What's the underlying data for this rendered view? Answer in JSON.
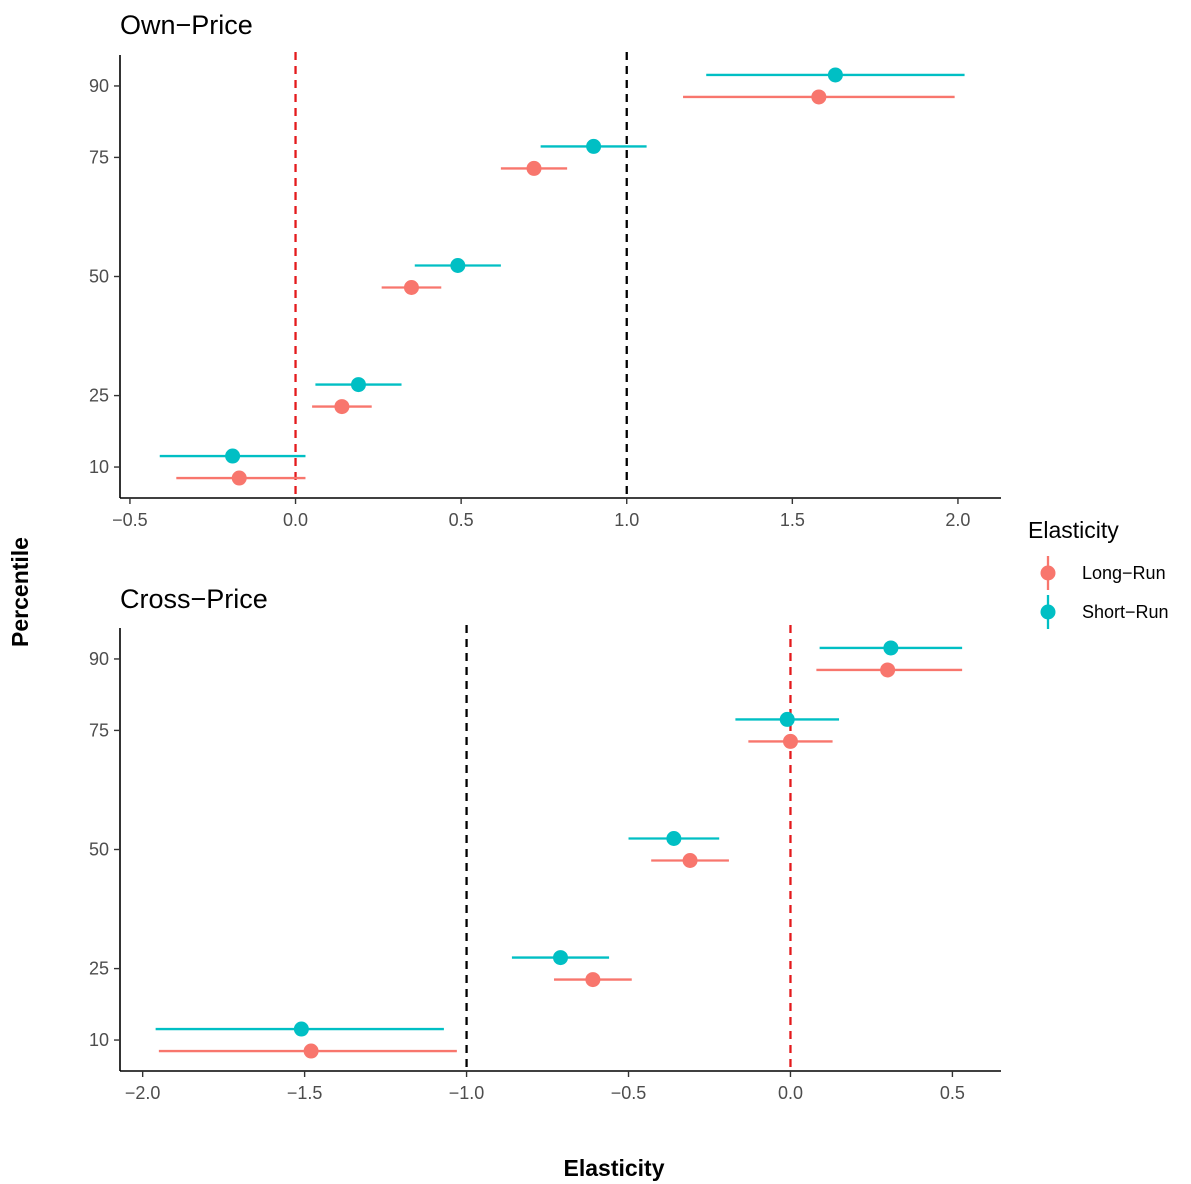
{
  "chart_data": {
    "type": "scatter",
    "xlabel": "Elasticity",
    "ylabel": "Percentile",
    "legend": {
      "title": "Elasticity",
      "position": "right",
      "entries": [
        {
          "name": "Long−Run",
          "color": "#F8766D"
        },
        {
          "name": "Short−Run",
          "color": "#00BFC4"
        }
      ]
    },
    "grid": false,
    "panels": [
      {
        "title": "Own−Price",
        "xlim": [
          -0.53,
          2.13
        ],
        "ylim": [
          3.5,
          96.5
        ],
        "x_ticks": [
          -0.5,
          0.0,
          0.5,
          1.0,
          1.5,
          2.0
        ],
        "x_tick_labels": [
          "−0.5",
          "0.0",
          "0.5",
          "1.0",
          "1.5",
          "2.0"
        ],
        "y_ticks": [
          10,
          25,
          50,
          75,
          90
        ],
        "y_tick_labels": [
          "10",
          "25",
          "50",
          "75",
          "90"
        ],
        "reference_lines": [
          {
            "x": 0.0,
            "color": "#e41a1c"
          },
          {
            "x": 1.0,
            "color": "#000000"
          }
        ],
        "series": [
          {
            "name": "Long−Run",
            "color": "#F8766D",
            "points": [
              {
                "percentile": 10,
                "estimate": -0.17,
                "low": -0.36,
                "high": 0.03
              },
              {
                "percentile": 25,
                "estimate": 0.14,
                "low": 0.05,
                "high": 0.23
              },
              {
                "percentile": 50,
                "estimate": 0.35,
                "low": 0.26,
                "high": 0.44
              },
              {
                "percentile": 75,
                "estimate": 0.72,
                "low": 0.62,
                "high": 0.82
              },
              {
                "percentile": 90,
                "estimate": 1.58,
                "low": 1.17,
                "high": 1.99
              }
            ]
          },
          {
            "name": "Short−Run",
            "color": "#00BFC4",
            "points": [
              {
                "percentile": 10,
                "estimate": -0.19,
                "low": -0.41,
                "high": 0.03
              },
              {
                "percentile": 25,
                "estimate": 0.19,
                "low": 0.06,
                "high": 0.32
              },
              {
                "percentile": 50,
                "estimate": 0.49,
                "low": 0.36,
                "high": 0.62
              },
              {
                "percentile": 75,
                "estimate": 0.9,
                "low": 0.74,
                "high": 1.06
              },
              {
                "percentile": 90,
                "estimate": 1.63,
                "low": 1.24,
                "high": 2.02
              }
            ]
          }
        ]
      },
      {
        "title": "Cross−Price",
        "xlim": [
          -2.07,
          0.65
        ],
        "ylim": [
          3.5,
          96.5
        ],
        "x_ticks": [
          -2.0,
          -1.5,
          -1.0,
          -0.5,
          0.0,
          0.5
        ],
        "x_tick_labels": [
          "−2.0",
          "−1.5",
          "−1.0",
          "−0.5",
          "0.0",
          "0.5"
        ],
        "y_ticks": [
          10,
          25,
          50,
          75,
          90
        ],
        "y_tick_labels": [
          "10",
          "25",
          "50",
          "75",
          "90"
        ],
        "reference_lines": [
          {
            "x": -1.0,
            "color": "#000000"
          },
          {
            "x": 0.0,
            "color": "#e41a1c"
          }
        ],
        "series": [
          {
            "name": "Long−Run",
            "color": "#F8766D",
            "points": [
              {
                "percentile": 10,
                "estimate": -1.48,
                "low": -1.95,
                "high": -1.03
              },
              {
                "percentile": 25,
                "estimate": -0.61,
                "low": -0.73,
                "high": -0.49
              },
              {
                "percentile": 50,
                "estimate": -0.31,
                "low": -0.43,
                "high": -0.19
              },
              {
                "percentile": 75,
                "estimate": 0.0,
                "low": -0.13,
                "high": 0.13
              },
              {
                "percentile": 90,
                "estimate": 0.3,
                "low": 0.08,
                "high": 0.53
              }
            ]
          },
          {
            "name": "Short−Run",
            "color": "#00BFC4",
            "points": [
              {
                "percentile": 10,
                "estimate": -1.51,
                "low": -1.96,
                "high": -1.07
              },
              {
                "percentile": 25,
                "estimate": -0.71,
                "low": -0.86,
                "high": -0.56
              },
              {
                "percentile": 50,
                "estimate": -0.36,
                "low": -0.5,
                "high": -0.22
              },
              {
                "percentile": 75,
                "estimate": -0.01,
                "low": -0.17,
                "high": 0.15
              },
              {
                "percentile": 90,
                "estimate": 0.31,
                "low": 0.09,
                "high": 0.53
              }
            ]
          }
        ]
      }
    ]
  }
}
